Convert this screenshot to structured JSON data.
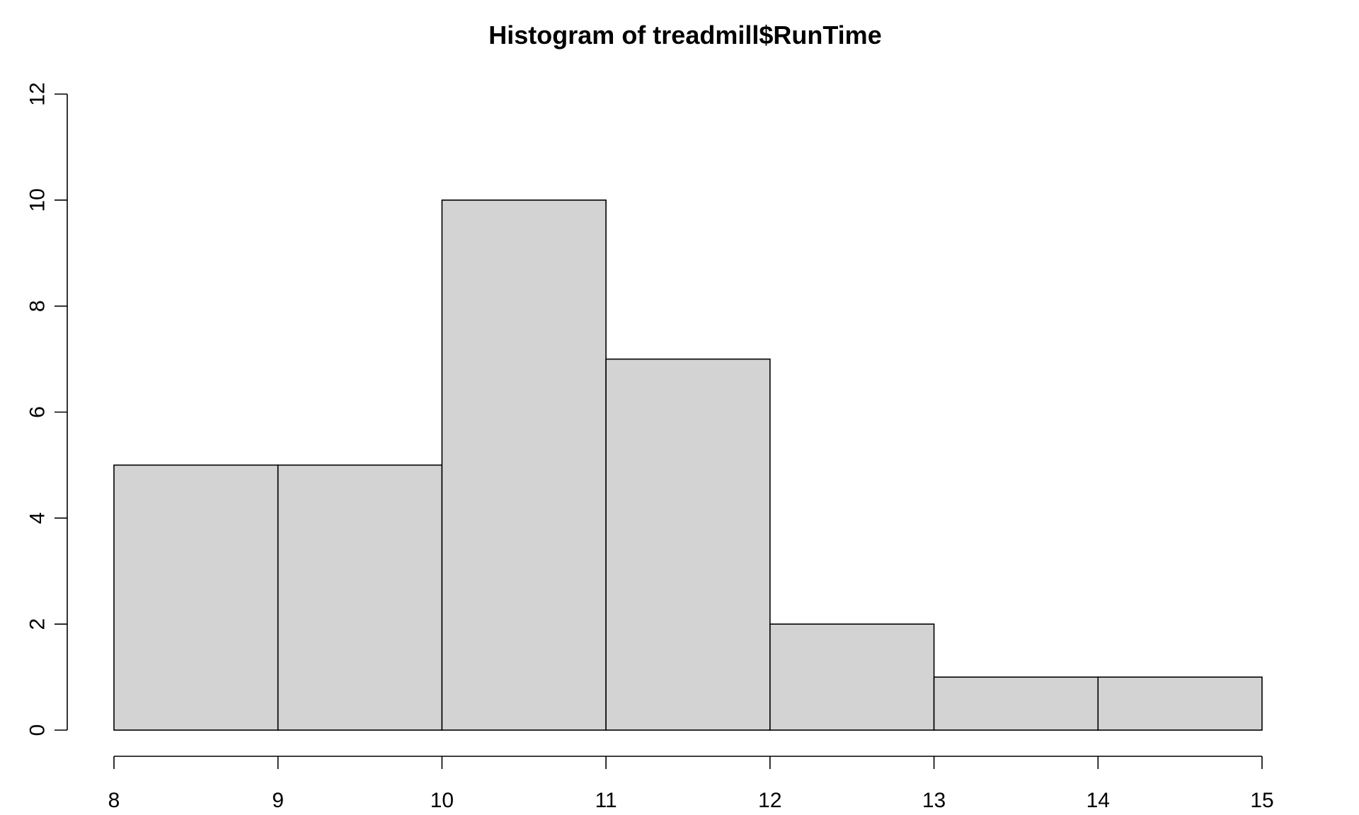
{
  "chart_data": {
    "type": "histogram",
    "title": "Histogram of treadmill$RunTime",
    "xlabel": "",
    "ylabel": "",
    "bins": [
      {
        "from": 8,
        "to": 9,
        "count": 5
      },
      {
        "from": 9,
        "to": 10,
        "count": 5
      },
      {
        "from": 10,
        "to": 11,
        "count": 10
      },
      {
        "from": 11,
        "to": 12,
        "count": 7
      },
      {
        "from": 12,
        "to": 13,
        "count": 2
      },
      {
        "from": 13,
        "to": 14,
        "count": 1
      },
      {
        "from": 14,
        "to": 15,
        "count": 1
      }
    ],
    "xlim": [
      8,
      15
    ],
    "ylim": [
      0,
      12
    ],
    "x_ticks": [
      "8",
      "9",
      "10",
      "11",
      "12",
      "13",
      "14",
      "15"
    ],
    "y_ticks": [
      "0",
      "2",
      "4",
      "6",
      "8",
      "10",
      "12"
    ],
    "grid": false,
    "bar_fill": "#d3d3d3",
    "bar_stroke": "#000000"
  }
}
